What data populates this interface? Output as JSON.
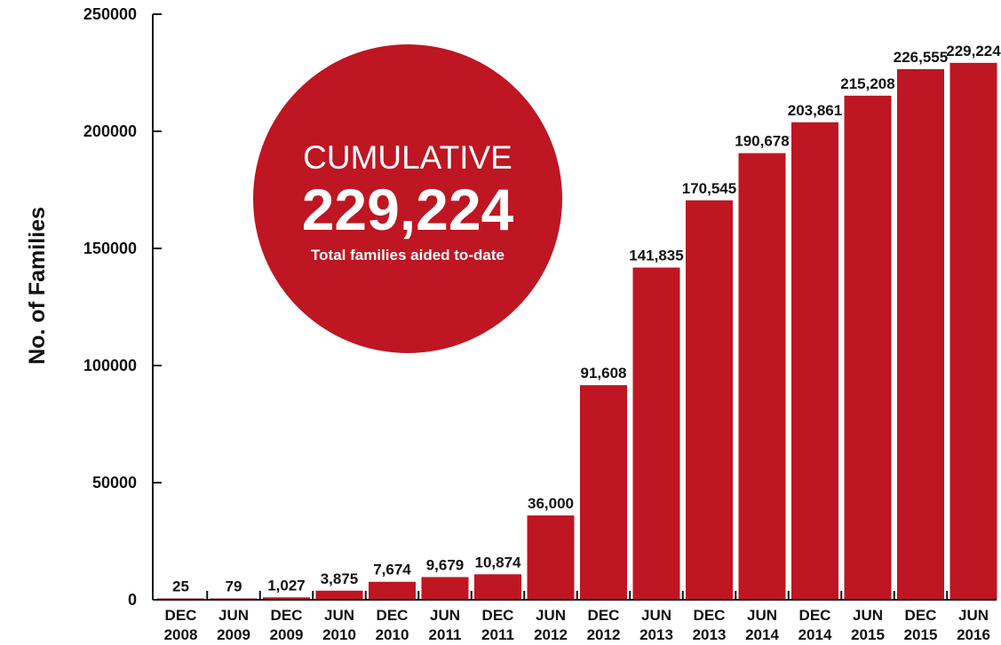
{
  "chart_data": {
    "type": "bar",
    "ylabel": "No. of Families",
    "xlabel": "",
    "ylim": [
      0,
      250000
    ],
    "yticks": [
      0,
      50000,
      100000,
      150000,
      200000,
      250000
    ],
    "grid": false,
    "bar_color": "#be1622",
    "categories": [
      [
        "DEC",
        "2008"
      ],
      [
        "JUN",
        "2009"
      ],
      [
        "DEC",
        "2009"
      ],
      [
        "JUN",
        "2010"
      ],
      [
        "DEC",
        "2010"
      ],
      [
        "JUN",
        "2011"
      ],
      [
        "DEC",
        "2011"
      ],
      [
        "JUN",
        "2012"
      ],
      [
        "DEC",
        "2012"
      ],
      [
        "JUN",
        "2013"
      ],
      [
        "DEC",
        "2013"
      ],
      [
        "JUN",
        "2014"
      ],
      [
        "DEC",
        "2014"
      ],
      [
        "JUN",
        "2015"
      ],
      [
        "DEC",
        "2015"
      ],
      [
        "JUN",
        "2016"
      ]
    ],
    "values": [
      25,
      79,
      1027,
      3875,
      7674,
      9679,
      10874,
      36000,
      91608,
      141835,
      170545,
      190678,
      203861,
      215208,
      226555,
      229224
    ],
    "value_labels": [
      "25",
      "79",
      "1,027",
      "3,875",
      "7,674",
      "9,679",
      "10,874",
      "36,000",
      "91,608",
      "141,835",
      "170,545",
      "190,678",
      "203,861",
      "215,208",
      "226,555",
      "229,224"
    ],
    "callout": {
      "heading": "CUMULATIVE",
      "value": "229,224",
      "caption": "Total families aided to-date",
      "color": "#be1622"
    }
  }
}
